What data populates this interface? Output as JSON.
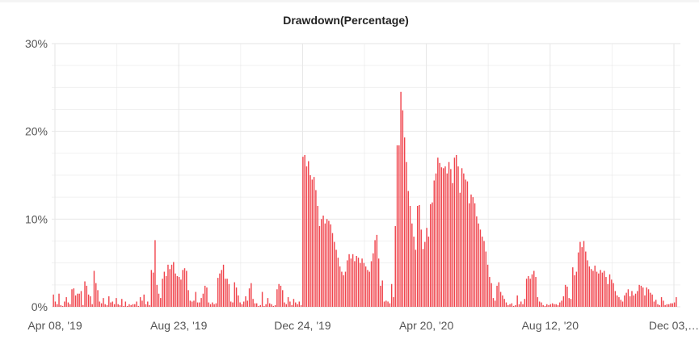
{
  "chart_data": {
    "type": "bar",
    "title": "Drawdown(Percentage)",
    "y_unit": "%",
    "ylim": [
      0,
      30
    ],
    "y_ticks": [
      {
        "value": 0,
        "label": "0%"
      },
      {
        "value": 10,
        "label": "10%"
      },
      {
        "value": 20,
        "label": "20%"
      },
      {
        "value": 30,
        "label": "30%"
      }
    ],
    "x_tick_labels": [
      "Apr 08, '19",
      "Aug 23, '19",
      "Dec 24, '19",
      "Apr 20, '20",
      "Aug 12, '20",
      "Dec 03,…"
    ],
    "grid": true,
    "bar_color": "#f0444c",
    "values": [
      1.4,
      0.6,
      0.3,
      1.5,
      0.2,
      0.1,
      0.6,
      1.1,
      0.5,
      0.3,
      2.0,
      2.1,
      1.3,
      1.5,
      1.5,
      1.8,
      0.2,
      2.9,
      2.4,
      1.4,
      1.2,
      0.3,
      4.1,
      2.7,
      1.9,
      0.6,
      0.4,
      1.0,
      0.3,
      0.2,
      1.2,
      0.5,
      0.6,
      0.3,
      1.0,
      0.3,
      0.2,
      0.9,
      0.1,
      0.6,
      0.1,
      0.3,
      0.2,
      0.3,
      0.3,
      0.6,
      0.1,
      1.1,
      0.7,
      1.4,
      0.3,
      0.6,
      0.2,
      4.2,
      3.9,
      7.6,
      2.5,
      1.5,
      1.0,
      3.2,
      4.0,
      3.5,
      4.8,
      4.3,
      4.8,
      5.1,
      3.8,
      3.5,
      3.4,
      3.1,
      4.2,
      4.4,
      4.1,
      1.9,
      0.7,
      0.6,
      0.7,
      1.7,
      0.5,
      0.5,
      1.0,
      1.5,
      2.4,
      2.2,
      0.5,
      0.3,
      0.5,
      0.3,
      0.4,
      3.3,
      3.8,
      4.2,
      4.8,
      3.2,
      3.2,
      2.6,
      0.6,
      0.5,
      2.8,
      2.2,
      1.3,
      0.5,
      0.3,
      0.6,
      1.2,
      0.7,
      2.1,
      2.7,
      0.9,
      0.4,
      0.4,
      0.1,
      0.2,
      1.7,
      0.1,
      0.3,
      1.0,
      0.4,
      0.3,
      0.1,
      0.2,
      2.0,
      2.6,
      2.4,
      1.9,
      0.5,
      0.3,
      1.1,
      0.6,
      0.2,
      0.9,
      0.5,
      0.3,
      0.6,
      0.2,
      17.1,
      17.3,
      16.0,
      16.6,
      15.0,
      14.5,
      14.8,
      13.3,
      11.5,
      9.2,
      10.0,
      10.4,
      9.5,
      10.0,
      9.8,
      9.4,
      8.4,
      7.4,
      6.5,
      5.6,
      4.6,
      4.0,
      3.6,
      4.0,
      5.3,
      6.0,
      5.5,
      6.0,
      5.2,
      5.8,
      5.6,
      5.0,
      5.5,
      5.0,
      4.6,
      4.2,
      4.0,
      5.2,
      6.1,
      7.6,
      8.2,
      5.5,
      2.4,
      3.0,
      0.6,
      0.7,
      0.6,
      0.4,
      2.6,
      1.1,
      9.2,
      18.4,
      18.4,
      24.5,
      22.4,
      19.3,
      16.5,
      13.2,
      11.5,
      9.5,
      8.0,
      6.5,
      11.5,
      11.6,
      8.8,
      6.6,
      7.4,
      9.0,
      8.0,
      11.7,
      11.9,
      14.4,
      15.2,
      17.0,
      16.4,
      15.9,
      15.8,
      16.0,
      15.2,
      16.5,
      15.7,
      14.1,
      17.0,
      17.3,
      16.0,
      13.0,
      15.8,
      15.2,
      14.5,
      14.3,
      11.8,
      12.8,
      12.5,
      11.8,
      10.3,
      9.5,
      8.8,
      8.0,
      7.5,
      6.3,
      4.8,
      3.4,
      2.7,
      1.0,
      0.7,
      2.4,
      2.8,
      1.7,
      1.3,
      0.9,
      0.5,
      0.2,
      0.3,
      0.4,
      0.1,
      0.2,
      1.3,
      0.3,
      0.6,
      0.3,
      0.9,
      3.2,
      3.5,
      3.2,
      3.7,
      4.1,
      3.4,
      1.1,
      0.6,
      0.5,
      0.2,
      0.1,
      0.3,
      0.2,
      0.3,
      0.4,
      0.3,
      0.3,
      0.2,
      0.5,
      0.7,
      1.2,
      2.5,
      2.3,
      1.0,
      0.9,
      4.5,
      3.6,
      4.0,
      6.2,
      7.4,
      6.8,
      7.5,
      6.3,
      5.3,
      4.6,
      4.3,
      4.1,
      4.7,
      4.0,
      3.8,
      4.2,
      3.9,
      4.1,
      3.4,
      2.6,
      3.7,
      3.1,
      2.7,
      1.8,
      1.3,
      1.1,
      0.8,
      0.6,
      1.3,
      1.6,
      2.0,
      1.2,
      1.8,
      1.3,
      1.5,
      1.8,
      2.5,
      2.4,
      2.2,
      1.3,
      2.2,
      2.0,
      1.6,
      1.4,
      0.6,
      0.8,
      0.3,
      0.2,
      1.1,
      0.7,
      0.2,
      0.3,
      0.3,
      0.4,
      0.4,
      0.5,
      1.1
    ]
  }
}
